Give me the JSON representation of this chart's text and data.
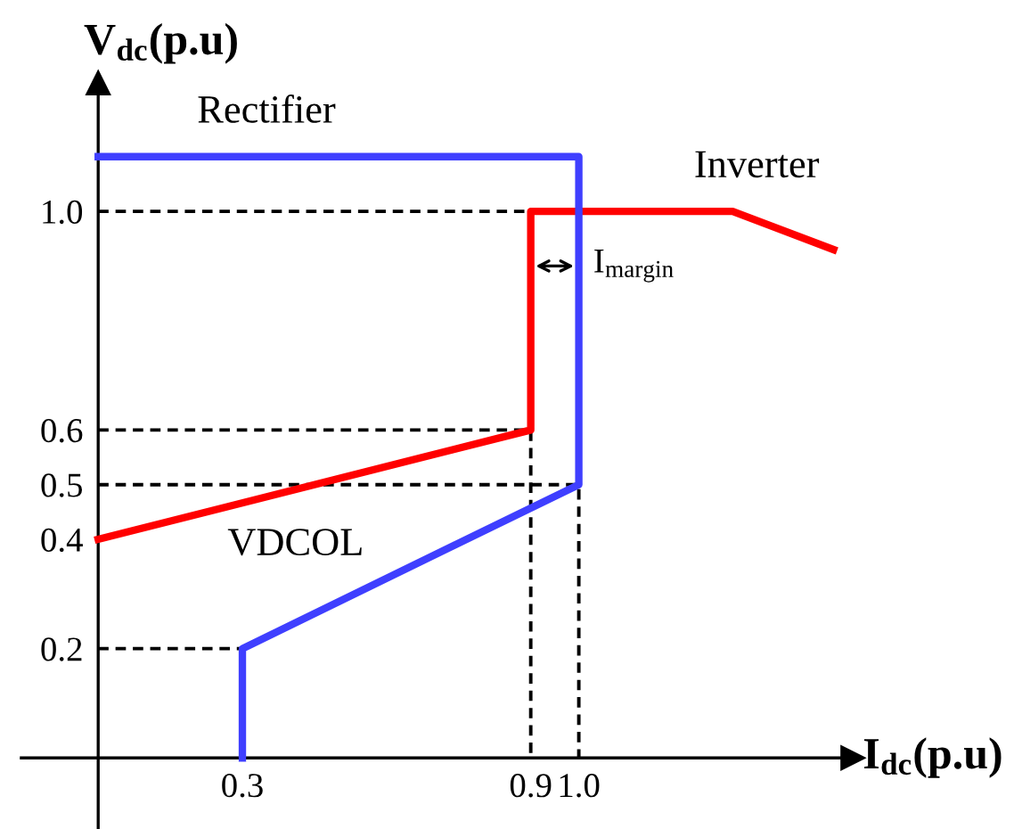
{
  "chart_data": {
    "type": "line",
    "xlabel": "I$_{dc}$(p.u)",
    "ylabel": "V$_{dc}$(p.u)",
    "xlim": [
      -0.16,
      1.57
    ],
    "ylim": [
      -0.13,
      1.235
    ],
    "xticks": [
      0.3,
      0.9,
      {
        "value": 1.0,
        "label": "1.0"
      }
    ],
    "yticks": [
      0.2,
      0.4,
      0.5,
      0.6,
      {
        "value": 1.0,
        "label": "1.0"
      }
    ],
    "grid": false,
    "legend": false,
    "marker": "none",
    "series": [
      {
        "name": "Inverter",
        "color": "#ff0000",
        "x": [
          0,
          0.9,
          0.9,
          1.32,
          1.53
        ],
        "values": [
          0.4,
          0.6,
          1.0,
          1.0,
          0.93
        ]
      },
      {
        "name": "Rectifier",
        "color": "#3f3fff",
        "x": [
          0.3,
          0.3,
          1.0,
          1.0,
          0
        ],
        "values": [
          0,
          0.2,
          0.5,
          1.1,
          1.1
        ]
      },
      {
        "color": "#000000",
        "line_style": "dashed",
        "x": [
          0,
          0.9
        ],
        "values": [
          1.0,
          1.0
        ]
      },
      {
        "color": "#000000",
        "line_style": "dashed",
        "x": [
          0,
          0.9,
          0.9
        ],
        "values": [
          0.6,
          0.6,
          0
        ]
      },
      {
        "color": "#000000",
        "line_style": "dashed",
        "x": [
          0,
          1.0,
          1.0
        ],
        "values": [
          0.5,
          0.5,
          0
        ]
      },
      {
        "color": "#000000",
        "line_style": "dashed",
        "x": [
          0,
          0.3
        ],
        "values": [
          0.2,
          0.2
        ]
      }
    ],
    "annotations": [
      "VDCOL",
      "I$_{margin}$"
    ]
  }
}
